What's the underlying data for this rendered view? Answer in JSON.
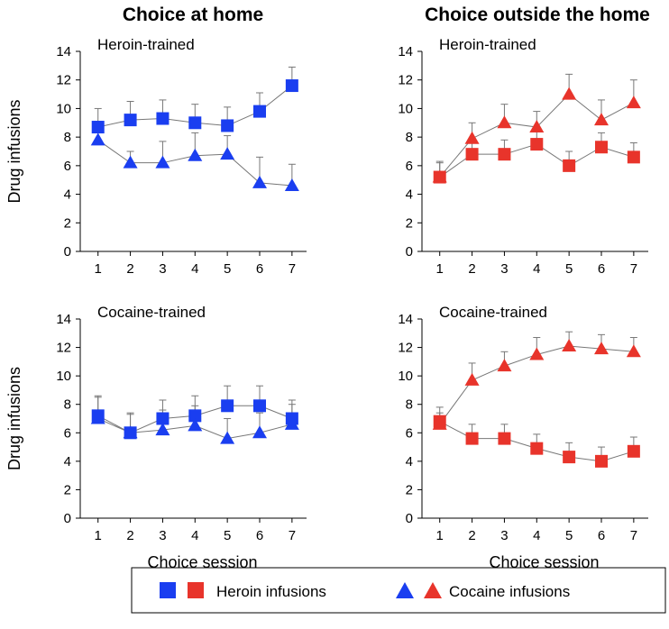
{
  "column_titles": [
    "Choice at home",
    "Choice outside the home"
  ],
  "legend": {
    "heroin_label": "Heroin infusions",
    "cocaine_label": "Cocaine infusions"
  },
  "colors": {
    "home": "#1a3ef0",
    "outside": "#e8342b",
    "line": "#777777",
    "axis": "#000000"
  },
  "chart_data": [
    {
      "type": "line",
      "title": "Heroin-trained",
      "column": "Choice at home",
      "xlabel": "",
      "ylabel": "Drug infusions",
      "x": [
        1,
        2,
        3,
        4,
        5,
        6,
        7
      ],
      "ylim": [
        0,
        14
      ],
      "yticks": [
        0,
        2,
        4,
        6,
        8,
        10,
        12,
        14
      ],
      "series": [
        {
          "name": "Heroin infusions",
          "marker": "square",
          "color": "#1a3ef0",
          "values": [
            8.7,
            9.2,
            9.3,
            9.0,
            8.8,
            9.8,
            11.6
          ],
          "error": [
            1.3,
            1.3,
            1.3,
            1.3,
            1.3,
            1.3,
            1.3
          ]
        },
        {
          "name": "Cocaine infusions",
          "marker": "triangle",
          "color": "#1a3ef0",
          "values": [
            7.8,
            6.2,
            6.2,
            6.7,
            6.8,
            4.8,
            4.6
          ],
          "error": [
            1.3,
            0.8,
            1.5,
            1.6,
            1.3,
            1.8,
            1.5
          ]
        }
      ]
    },
    {
      "type": "line",
      "title": "Heroin-trained",
      "column": "Choice outside the home",
      "xlabel": "",
      "ylabel": "",
      "x": [
        1,
        2,
        3,
        4,
        5,
        6,
        7
      ],
      "ylim": [
        0,
        14
      ],
      "yticks": [
        0,
        2,
        4,
        6,
        8,
        10,
        12,
        14
      ],
      "series": [
        {
          "name": "Heroin infusions",
          "marker": "square",
          "color": "#e8342b",
          "values": [
            5.2,
            6.8,
            6.8,
            7.5,
            6.0,
            7.3,
            6.6
          ],
          "error": [
            1.0,
            1.0,
            1.0,
            1.0,
            1.0,
            1.0,
            1.0
          ]
        },
        {
          "name": "Cocaine infusions",
          "marker": "triangle",
          "color": "#e8342b",
          "values": [
            5.2,
            7.9,
            9.0,
            8.7,
            11.0,
            9.2,
            10.4
          ],
          "error": [
            1.1,
            1.1,
            1.3,
            1.1,
            1.4,
            1.4,
            1.6
          ]
        }
      ]
    },
    {
      "type": "line",
      "title": "Cocaine-trained",
      "column": "Choice at home",
      "xlabel": "Choice session",
      "ylabel": "Drug infusions",
      "x": [
        1,
        2,
        3,
        4,
        5,
        6,
        7
      ],
      "ylim": [
        0,
        14
      ],
      "yticks": [
        0,
        2,
        4,
        6,
        8,
        10,
        12,
        14
      ],
      "series": [
        {
          "name": "Heroin infusions",
          "marker": "square",
          "color": "#1a3ef0",
          "values": [
            7.2,
            6.0,
            7.0,
            7.2,
            7.9,
            7.9,
            7.0
          ],
          "error": [
            1.4,
            1.3,
            1.3,
            1.4,
            1.4,
            1.4,
            1.3
          ]
        },
        {
          "name": "Cocaine infusions",
          "marker": "triangle",
          "color": "#1a3ef0",
          "values": [
            7.0,
            6.0,
            6.2,
            6.5,
            5.6,
            6.0,
            6.6
          ],
          "error": [
            1.5,
            1.4,
            1.4,
            1.4,
            1.4,
            1.4,
            1.4
          ]
        }
      ]
    },
    {
      "type": "line",
      "title": "Cocaine-trained",
      "column": "Choice outside the home",
      "xlabel": "Choice session",
      "ylabel": "",
      "x": [
        1,
        2,
        3,
        4,
        5,
        6,
        7
      ],
      "ylim": [
        0,
        14
      ],
      "yticks": [
        0,
        2,
        4,
        6,
        8,
        10,
        12,
        14
      ],
      "series": [
        {
          "name": "Heroin infusions",
          "marker": "square",
          "color": "#e8342b",
          "values": [
            6.8,
            5.6,
            5.6,
            4.9,
            4.3,
            4.0,
            4.7
          ],
          "error": [
            1.0,
            1.0,
            1.0,
            1.0,
            1.0,
            1.0,
            1.0
          ]
        },
        {
          "name": "Cocaine infusions",
          "marker": "triangle",
          "color": "#e8342b",
          "values": [
            6.6,
            9.7,
            10.7,
            11.5,
            12.1,
            11.9,
            11.7
          ],
          "error": [
            0.8,
            1.2,
            1.0,
            1.2,
            1.0,
            1.0,
            1.0
          ]
        }
      ]
    }
  ]
}
